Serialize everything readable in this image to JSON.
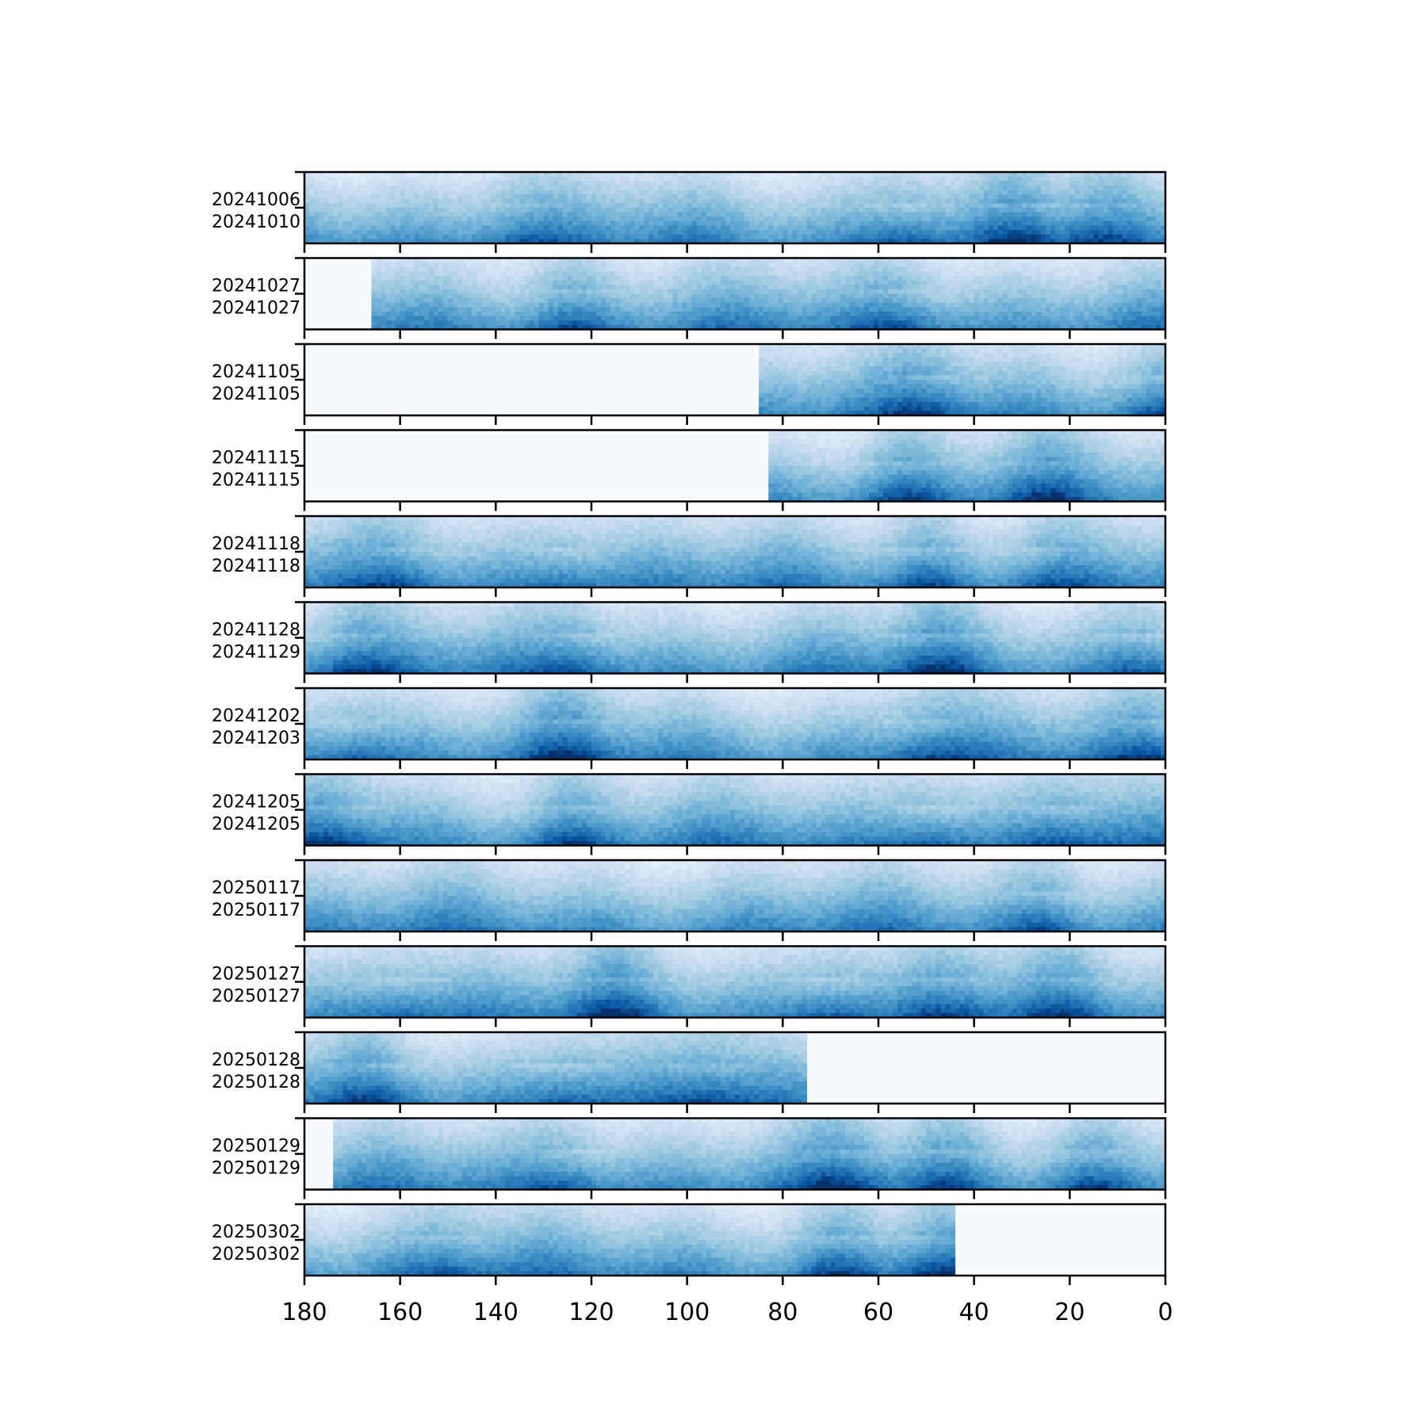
{
  "chart_data": {
    "type": "heatmap",
    "title": "",
    "xlabel": "",
    "ylabel": "",
    "xlim": [
      180,
      0
    ],
    "x_ticks": [
      180,
      160,
      140,
      120,
      100,
      80,
      60,
      40,
      20,
      0
    ],
    "x_tick_labels": [
      "180",
      "160",
      "140",
      "120",
      "100",
      "80",
      "60",
      "40",
      "20",
      "0"
    ],
    "colormap": "Blues",
    "colors": {
      "lightest": "#f7fbff",
      "light": "#deebf7",
      "mid_light": "#9ecae1",
      "mid": "#4292c6",
      "dark": "#2171b5",
      "darkest": "#08306b"
    },
    "panels": [
      {
        "labels": [
          "20241006",
          "20241010"
        ],
        "data_extent": [
          180,
          0
        ],
        "bands": [
          [
            135,
            0.62
          ],
          [
            55,
            0.95
          ],
          [
            30,
            0.95
          ],
          [
            15,
            0.7
          ]
        ]
      },
      {
        "labels": [
          "20241027",
          "20241027"
        ],
        "data_extent": [
          166,
          0
        ],
        "bands": [
          [
            125,
            0.85
          ],
          [
            55,
            0.8
          ]
        ]
      },
      {
        "labels": [
          "20241105",
          "20241105"
        ],
        "data_extent": [
          85,
          0
        ],
        "bands": [
          [
            50,
            0.75
          ],
          [
            2,
            0.85
          ]
        ]
      },
      {
        "labels": [
          "20241115",
          "20241115"
        ],
        "data_extent": [
          83,
          0
        ],
        "bands": [
          [
            55,
            0.9
          ],
          [
            25,
            0.75
          ]
        ]
      },
      {
        "labels": [
          "20241118",
          "20241118"
        ],
        "data_extent": [
          180,
          0
        ],
        "bands": [
          [
            160,
            0.75
          ],
          [
            125,
            0.75
          ],
          [
            50,
            0.9
          ],
          [
            25,
            0.8
          ]
        ]
      },
      {
        "labels": [
          "20241128",
          "20241129"
        ],
        "data_extent": [
          180,
          0
        ],
        "bands": [
          [
            170,
            0.95
          ],
          [
            123,
            0.9
          ],
          [
            48,
            0.95
          ],
          [
            5,
            0.85
          ]
        ]
      },
      {
        "labels": [
          "20241202",
          "20241203"
        ],
        "data_extent": [
          180,
          0
        ],
        "bands": [
          [
            170,
            0.8
          ],
          [
            125,
            0.85
          ],
          [
            50,
            0.85
          ],
          [
            3,
            1.0
          ]
        ]
      },
      {
        "labels": [
          "20241205",
          "20241205"
        ],
        "data_extent": [
          180,
          0
        ],
        "bands": [
          [
            173,
            0.95
          ],
          [
            125,
            0.95
          ],
          [
            50,
            0.95
          ],
          [
            22,
            0.85
          ]
        ]
      },
      {
        "labels": [
          "20250117",
          "20250117"
        ],
        "data_extent": [
          180,
          0
        ],
        "bands": [
          [
            25,
            0.85
          ]
        ]
      },
      {
        "labels": [
          "20250127",
          "20250127"
        ],
        "data_extent": [
          180,
          0
        ],
        "bands": [
          [
            160,
            0.85
          ],
          [
            115,
            0.9
          ],
          [
            70,
            0.9
          ],
          [
            45,
            0.85
          ],
          [
            20,
            0.8
          ]
        ]
      },
      {
        "labels": [
          "20250128",
          "20250128"
        ],
        "data_extent": [
          180,
          75
        ],
        "bands": [
          [
            165,
            0.85
          ],
          [
            125,
            0.85
          ],
          [
            95,
            0.8
          ]
        ]
      },
      {
        "labels": [
          "20250129",
          "20250129"
        ],
        "data_extent": [
          174,
          0
        ],
        "bands": [
          [
            125,
            0.8
          ],
          [
            68,
            0.95
          ],
          [
            45,
            0.85
          ],
          [
            15,
            0.95
          ]
        ]
      },
      {
        "labels": [
          "20250302",
          "20250302"
        ],
        "data_extent": [
          180,
          44
        ],
        "bands": [
          [
            150,
            0.75
          ],
          [
            68,
            0.9
          ],
          [
            48,
            0.85
          ]
        ]
      }
    ]
  }
}
